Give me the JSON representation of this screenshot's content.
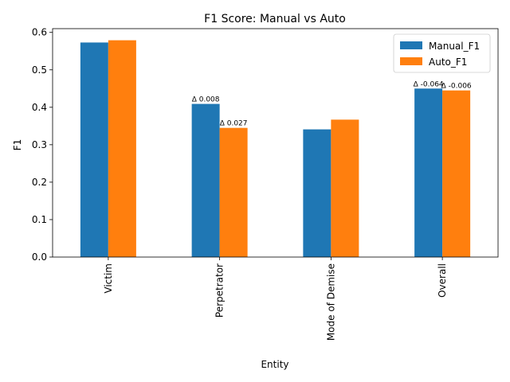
{
  "chart_data": {
    "type": "bar",
    "title": "F1 Score: Manual vs Auto",
    "xlabel": "Entity",
    "ylabel": "F1",
    "categories": [
      "Victim",
      "Perpetrator",
      "Mode of Demise",
      "Overall"
    ],
    "series": [
      {
        "name": "Manual_F1",
        "color": "#1f77b4",
        "values": [
          0.573,
          0.409,
          0.341,
          0.45
        ]
      },
      {
        "name": "Auto_F1",
        "color": "#ff7f0e",
        "values": [
          0.579,
          0.345,
          0.367,
          0.445
        ]
      }
    ],
    "ylim": [
      0,
      0.61
    ],
    "yticks": [
      0.0,
      0.1,
      0.2,
      0.3,
      0.4,
      0.5,
      0.6
    ],
    "ytick_labels": [
      "0.0",
      "0.1",
      "0.2",
      "0.3",
      "0.4",
      "0.5",
      "0.6"
    ],
    "annotations": [
      {
        "text": "Δ 0.008",
        "category": 1,
        "series": 0
      },
      {
        "text": "Δ 0.027",
        "category": 1,
        "series": 1
      },
      {
        "text": "Δ -0.064",
        "category": 3,
        "series": 0
      },
      {
        "text": "Δ -0.006",
        "category": 3,
        "series": 1
      }
    ],
    "legend": {
      "placement": "top-right"
    },
    "grid": false,
    "xtick_rotation": 90
  }
}
